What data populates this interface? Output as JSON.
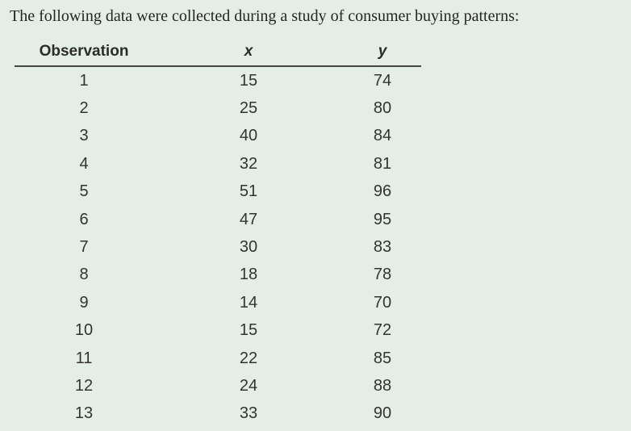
{
  "panel": {
    "colors": {
      "background": "#e5eee6",
      "text": "#2b2b2b",
      "header_rule": "#474747"
    }
  },
  "caption": "The following data were collected during a study of consumer buying patterns:",
  "table": {
    "headers": [
      "Observation",
      "x",
      "y"
    ],
    "rows": [
      [
        "1",
        "15",
        "74"
      ],
      [
        "2",
        "25",
        "80"
      ],
      [
        "3",
        "40",
        "84"
      ],
      [
        "4",
        "32",
        "81"
      ],
      [
        "5",
        "51",
        "96"
      ],
      [
        "6",
        "47",
        "95"
      ],
      [
        "7",
        "30",
        "83"
      ],
      [
        "8",
        "18",
        "78"
      ],
      [
        "9",
        "14",
        "70"
      ],
      [
        "10",
        "15",
        "72"
      ],
      [
        "11",
        "22",
        "85"
      ],
      [
        "12",
        "24",
        "88"
      ],
      [
        "13",
        "33",
        "90"
      ]
    ]
  },
  "chart_data": {
    "type": "table",
    "columns": [
      "Observation",
      "x",
      "y"
    ],
    "observations": [
      1,
      2,
      3,
      4,
      5,
      6,
      7,
      8,
      9,
      10,
      11,
      12,
      13
    ],
    "x": [
      15,
      25,
      40,
      32,
      51,
      47,
      30,
      18,
      14,
      15,
      22,
      24,
      33
    ],
    "y": [
      74,
      80,
      84,
      81,
      96,
      95,
      83,
      78,
      70,
      72,
      85,
      88,
      90
    ],
    "title": "Consumer buying patterns study data"
  }
}
